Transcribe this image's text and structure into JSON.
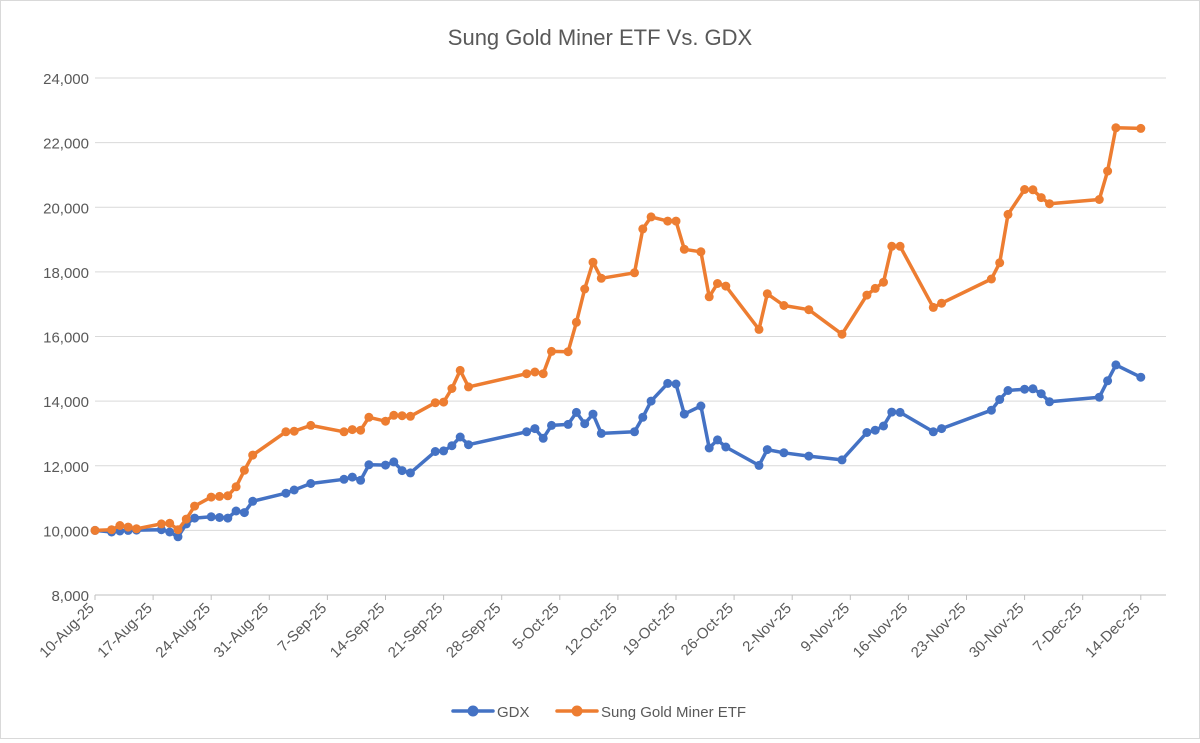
{
  "chart_data": {
    "type": "line",
    "title": "Sung Gold Miner ETF Vs. GDX",
    "xlabel": "",
    "ylabel": "",
    "ylim": [
      8000,
      24000
    ],
    "yticks": [
      8000,
      10000,
      12000,
      14000,
      16000,
      18000,
      20000,
      22000,
      24000
    ],
    "ytick_labels": [
      "8,000",
      "10,000",
      "12,000",
      "14,000",
      "16,000",
      "18,000",
      "20,000",
      "22,000",
      "24,000"
    ],
    "xlim_day": [
      0,
      128
    ],
    "xticks": [
      {
        "day": 0,
        "label": "10-Aug-25"
      },
      {
        "day": 7,
        "label": "17-Aug-25"
      },
      {
        "day": 14,
        "label": "24-Aug-25"
      },
      {
        "day": 21,
        "label": "31-Aug-25"
      },
      {
        "day": 28,
        "label": "7-Sep-25"
      },
      {
        "day": 35,
        "label": "14-Sep-25"
      },
      {
        "day": 42,
        "label": "21-Sep-25"
      },
      {
        "day": 49,
        "label": "28-Sep-25"
      },
      {
        "day": 56,
        "label": "5-Oct-25"
      },
      {
        "day": 63,
        "label": "12-Oct-25"
      },
      {
        "day": 70,
        "label": "19-Oct-25"
      },
      {
        "day": 77,
        "label": "26-Oct-25"
      },
      {
        "day": 84,
        "label": "2-Nov-25"
      },
      {
        "day": 91,
        "label": "9-Nov-25"
      },
      {
        "day": 98,
        "label": "16-Nov-25"
      },
      {
        "day": 105,
        "label": "23-Nov-25"
      },
      {
        "day": 112,
        "label": "30-Nov-25"
      },
      {
        "day": 119,
        "label": "7-Dec-25"
      },
      {
        "day": 126,
        "label": "14-Dec-25"
      }
    ],
    "grid": true,
    "legend": "bottom-center",
    "series": [
      {
        "name": "GDX",
        "color": "#4472C4",
        "points": [
          [
            0,
            10000
          ],
          [
            2,
            9950
          ],
          [
            3,
            9980
          ],
          [
            4,
            10000
          ],
          [
            5,
            10010
          ],
          [
            8,
            10020
          ],
          [
            9,
            9950
          ],
          [
            10,
            9800
          ],
          [
            11,
            10200
          ],
          [
            12,
            10380
          ],
          [
            14,
            10420
          ],
          [
            15,
            10400
          ],
          [
            16,
            10380
          ],
          [
            17,
            10600
          ],
          [
            18,
            10550
          ],
          [
            19,
            10900
          ],
          [
            23,
            11150
          ],
          [
            24,
            11250
          ],
          [
            26,
            11450
          ],
          [
            30,
            11580
          ],
          [
            31,
            11650
          ],
          [
            32,
            11550
          ],
          [
            33,
            12030
          ],
          [
            35,
            12020
          ],
          [
            36,
            12120
          ],
          [
            37,
            11850
          ],
          [
            38,
            11780
          ],
          [
            41,
            12440
          ],
          [
            42,
            12460
          ],
          [
            43,
            12620
          ],
          [
            44,
            12890
          ],
          [
            45,
            12650
          ],
          [
            52,
            13050
          ],
          [
            53,
            13150
          ],
          [
            54,
            12850
          ],
          [
            55,
            13250
          ],
          [
            57,
            13280
          ],
          [
            58,
            13650
          ],
          [
            59,
            13300
          ],
          [
            60,
            13600
          ],
          [
            61,
            13000
          ],
          [
            65,
            13050
          ],
          [
            66,
            13500
          ],
          [
            67,
            14000
          ],
          [
            69,
            14550
          ],
          [
            70,
            14530
          ],
          [
            71,
            13600
          ],
          [
            73,
            13850
          ],
          [
            74,
            12550
          ],
          [
            75,
            12800
          ],
          [
            76,
            12580
          ],
          [
            80,
            12010
          ],
          [
            81,
            12500
          ],
          [
            83,
            12400
          ],
          [
            86,
            12300
          ],
          [
            90,
            12180
          ],
          [
            93,
            13030
          ],
          [
            94,
            13100
          ],
          [
            95,
            13230
          ],
          [
            96,
            13660
          ],
          [
            97,
            13650
          ],
          [
            101,
            13050
          ],
          [
            102,
            13150
          ],
          [
            108,
            13720
          ],
          [
            109,
            14050
          ],
          [
            110,
            14330
          ],
          [
            112,
            14370
          ],
          [
            113,
            14380
          ],
          [
            114,
            14230
          ],
          [
            115,
            13980
          ],
          [
            121,
            14120
          ],
          [
            122,
            14630
          ],
          [
            123,
            15120
          ],
          [
            126,
            14740
          ]
        ]
      },
      {
        "name": "Sung Gold Miner ETF",
        "color": "#ED7D31",
        "points": [
          [
            0,
            10000
          ],
          [
            2,
            10020
          ],
          [
            3,
            10150
          ],
          [
            4,
            10100
          ],
          [
            5,
            10050
          ],
          [
            8,
            10200
          ],
          [
            9,
            10220
          ],
          [
            10,
            10020
          ],
          [
            11,
            10350
          ],
          [
            12,
            10750
          ],
          [
            14,
            11030
          ],
          [
            15,
            11050
          ],
          [
            16,
            11070
          ],
          [
            17,
            11350
          ],
          [
            18,
            11860
          ],
          [
            19,
            12330
          ],
          [
            23,
            13050
          ],
          [
            24,
            13070
          ],
          [
            26,
            13250
          ],
          [
            30,
            13050
          ],
          [
            31,
            13120
          ],
          [
            32,
            13100
          ],
          [
            33,
            13500
          ],
          [
            35,
            13380
          ],
          [
            36,
            13560
          ],
          [
            37,
            13550
          ],
          [
            38,
            13530
          ],
          [
            41,
            13950
          ],
          [
            42,
            13970
          ],
          [
            43,
            14390
          ],
          [
            44,
            14950
          ],
          [
            45,
            14440
          ],
          [
            52,
            14850
          ],
          [
            53,
            14900
          ],
          [
            54,
            14850
          ],
          [
            55,
            15540
          ],
          [
            57,
            15530
          ],
          [
            58,
            16440
          ],
          [
            59,
            17470
          ],
          [
            60,
            18300
          ],
          [
            61,
            17800
          ],
          [
            65,
            17970
          ],
          [
            66,
            19330
          ],
          [
            67,
            19700
          ],
          [
            69,
            19570
          ],
          [
            70,
            19570
          ],
          [
            71,
            18700
          ],
          [
            73,
            18620
          ],
          [
            74,
            17230
          ],
          [
            75,
            17640
          ],
          [
            76,
            17560
          ],
          [
            80,
            16220
          ],
          [
            81,
            17320
          ],
          [
            83,
            16960
          ],
          [
            86,
            16830
          ],
          [
            90,
            16070
          ],
          [
            93,
            17280
          ],
          [
            94,
            17490
          ],
          [
            95,
            17680
          ],
          [
            96,
            18790
          ],
          [
            97,
            18790
          ],
          [
            101,
            16900
          ],
          [
            102,
            17030
          ],
          [
            108,
            17780
          ],
          [
            109,
            18280
          ],
          [
            110,
            19780
          ],
          [
            112,
            20550
          ],
          [
            113,
            20540
          ],
          [
            114,
            20300
          ],
          [
            115,
            20110
          ],
          [
            121,
            20240
          ],
          [
            122,
            21120
          ],
          [
            123,
            22460
          ],
          [
            126,
            22440
          ]
        ]
      }
    ]
  }
}
